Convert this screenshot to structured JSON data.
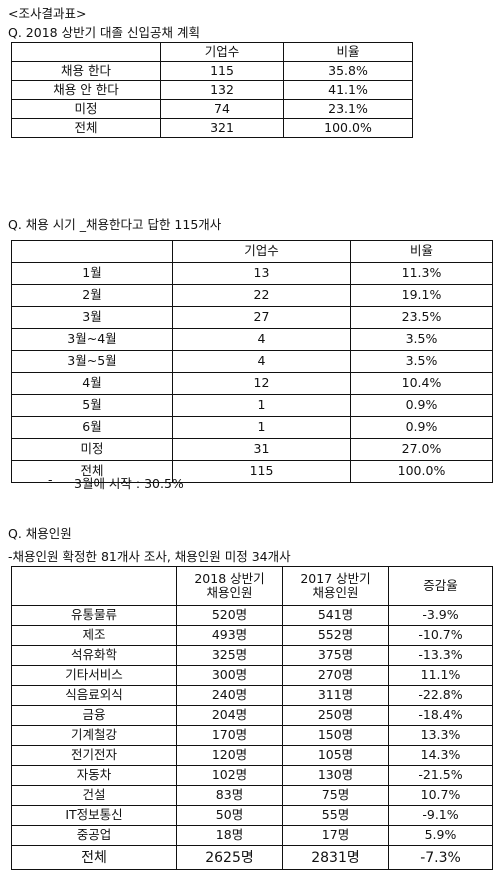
{
  "header": "<조사결과표>",
  "section1": {
    "title": "Q. 2018 상반기 대졸 신입공채 계획",
    "columns": [
      "",
      "기업수",
      "비율"
    ],
    "rows": [
      [
        "채용 한다",
        "115",
        "35.8%"
      ],
      [
        "채용 안 한다",
        "132",
        "41.1%"
      ],
      [
        "미정",
        "74",
        "23.1%"
      ],
      [
        "전체",
        "321",
        "100.0%"
      ]
    ]
  },
  "section2": {
    "title": "Q. 채용 시기 _채용한다고 답한 115개사",
    "columns": [
      "",
      "기업수",
      "비율"
    ],
    "rows": [
      [
        "1월",
        "13",
        "11.3%"
      ],
      [
        "2월",
        "22",
        "19.1%"
      ],
      [
        "3월",
        "27",
        "23.5%"
      ],
      [
        "3월~4월",
        "4",
        "3.5%"
      ],
      [
        "3월~5월",
        "4",
        "3.5%"
      ],
      [
        "4월",
        "12",
        "10.4%"
      ],
      [
        "5월",
        "1",
        "0.9%"
      ],
      [
        "6월",
        "1",
        "0.9%"
      ],
      [
        "미정",
        "31",
        "27.0%"
      ],
      [
        "전체",
        "115",
        "100.0%"
      ]
    ],
    "note_dash": "-",
    "note": "3월에 시작 : 30.5%"
  },
  "section3": {
    "title": "Q. 채용인원",
    "subtitle": "-채용인원 확정한 81개사 조사, 채용인원 미정 34개사",
    "columns": [
      [
        "",
        ""
      ],
      [
        "2018 상반기",
        "채용인원"
      ],
      [
        "2017 상반기",
        "채용인원"
      ],
      [
        "증감율",
        ""
      ]
    ],
    "rows": [
      [
        "유통물류",
        "520명",
        "541명",
        "-3.9%"
      ],
      [
        "제조",
        "493명",
        "552명",
        "-10.7%"
      ],
      [
        "석유화학",
        "325명",
        "375명",
        "-13.3%"
      ],
      [
        "기타서비스",
        "300명",
        "270명",
        "11.1%"
      ],
      [
        "식음료외식",
        "240명",
        "311명",
        "-22.8%"
      ],
      [
        "금융",
        "204명",
        "250명",
        "-18.4%"
      ],
      [
        "기계철강",
        "170명",
        "150명",
        "13.3%"
      ],
      [
        "전기전자",
        "120명",
        "105명",
        "14.3%"
      ],
      [
        "자동차",
        "102명",
        "130명",
        "-21.5%"
      ],
      [
        "건설",
        "83명",
        "75명",
        "10.7%"
      ],
      [
        "IT정보통신",
        "50명",
        "55명",
        "-9.1%"
      ],
      [
        "중공업",
        "18명",
        "17명",
        "5.9%"
      ],
      [
        "전체",
        "2625명",
        "2831명",
        "-7.3%"
      ]
    ]
  }
}
